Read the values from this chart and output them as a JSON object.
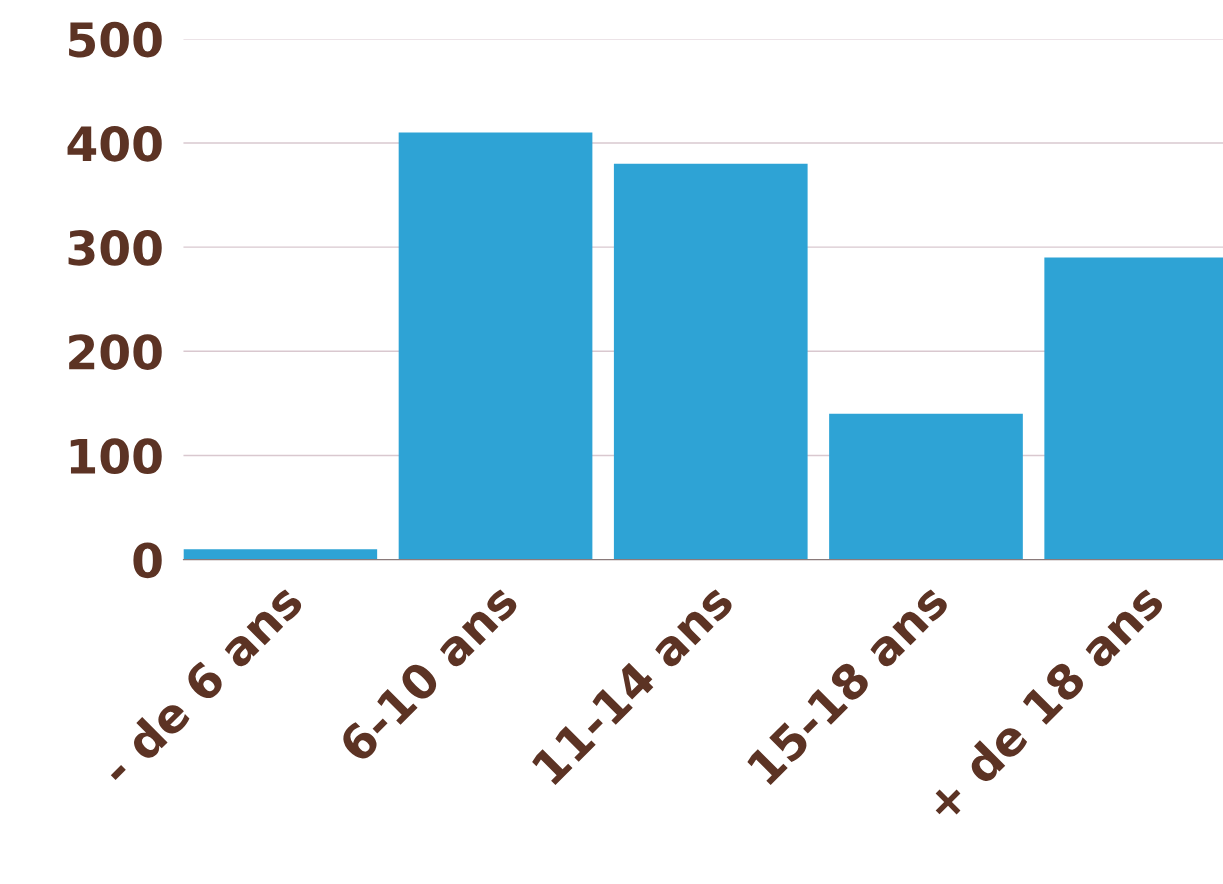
{
  "chart_data": {
    "type": "bar",
    "categories": [
      "- de 6 ans",
      "6-10 ans",
      "11-14 ans",
      "15-18 ans",
      "+ de 18 ans"
    ],
    "values": [
      10,
      410,
      380,
      140,
      290
    ],
    "color": "#2ea3d5",
    "ylim": [
      0,
      500
    ],
    "yticks": [
      0,
      100,
      200,
      300,
      400,
      500
    ],
    "grid": "y"
  }
}
